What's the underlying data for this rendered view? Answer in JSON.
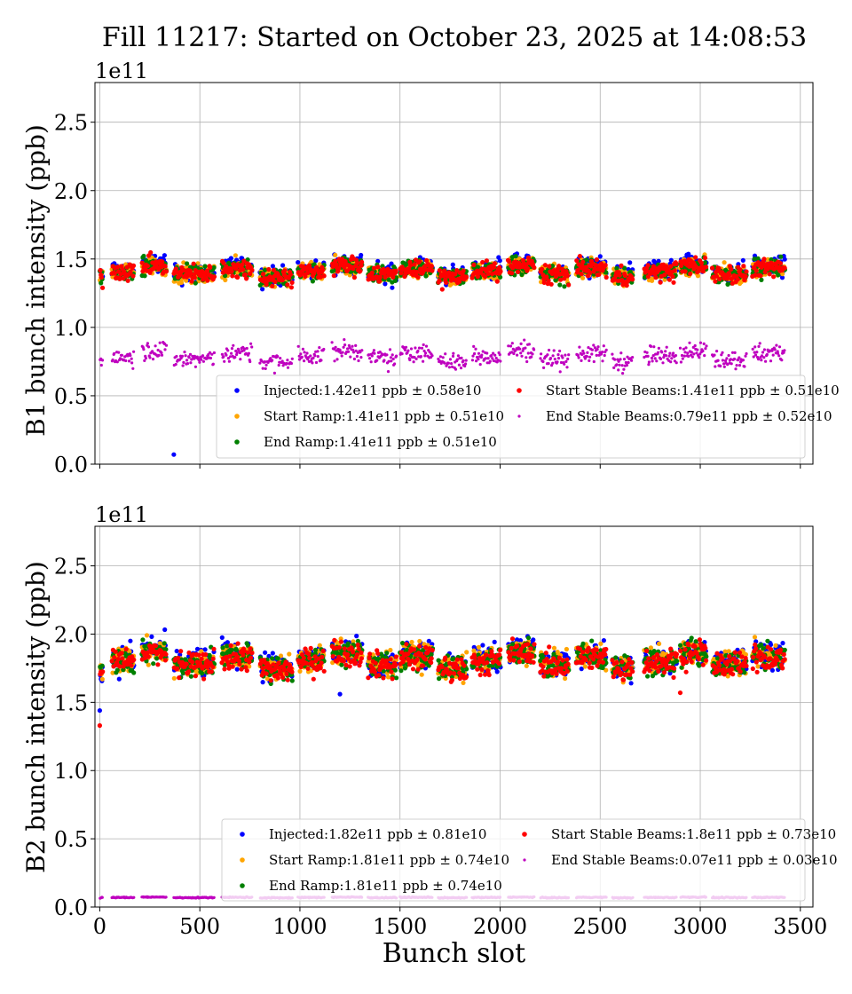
{
  "title": "Fill 11217: Started on October 23, 2025 at 14:08:53",
  "chart_data": [
    {
      "type": "scatter",
      "ylabel": "B1 bunch intensity (ppb)",
      "xlabel": "",
      "y_scale_label": "1e11",
      "xlim": [
        -24,
        3563
      ],
      "ylim": [
        0,
        2.79
      ],
      "xticks": [
        "0",
        "500",
        "1000",
        "1500",
        "2000",
        "2500",
        "3000",
        "3500"
      ],
      "xticks_labeled": false,
      "yticks": [
        "0.0",
        "0.5",
        "1.0",
        "1.5",
        "2.0",
        "2.5"
      ],
      "grid": true,
      "legend_placement": "lower-right",
      "trains": [
        [
          0,
          12
        ],
        [
          60,
          170
        ],
        [
          210,
          330
        ],
        [
          370,
          570
        ],
        [
          610,
          760
        ],
        [
          800,
          960
        ],
        [
          990,
          1120
        ],
        [
          1160,
          1310
        ],
        [
          1340,
          1480
        ],
        [
          1500,
          1660
        ],
        [
          1690,
          1830
        ],
        [
          1860,
          2000
        ],
        [
          2040,
          2170
        ],
        [
          2200,
          2340
        ],
        [
          2380,
          2530
        ],
        [
          2560,
          2660
        ],
        [
          2720,
          2880
        ],
        [
          2900,
          3030
        ],
        [
          3060,
          3230
        ],
        [
          3260,
          3420
        ]
      ],
      "series": [
        {
          "name": "Injected:1.42e11 ppb ± 0.58e10",
          "color": "#0000ff",
          "mean": 1.42,
          "spread": 0.058,
          "outliers": [
            [
              370,
              0.07
            ]
          ]
        },
        {
          "name": "Start Ramp:1.41e11 ppb ± 0.51e10",
          "color": "#ffa500",
          "mean": 1.41,
          "spread": 0.051
        },
        {
          "name": "End Ramp:1.41e11 ppb ± 0.51e10",
          "color": "#008000",
          "mean": 1.41,
          "spread": 0.051
        },
        {
          "name": "Start Stable Beams:1.41e11 ppb ± 0.51e10",
          "color": "#ff0000",
          "mean": 1.41,
          "spread": 0.051
        },
        {
          "name": "End Stable Beams:0.79e11 ppb ± 0.52e10",
          "color": "#bf00bf",
          "mean": 0.79,
          "spread": 0.052
        }
      ]
    },
    {
      "type": "scatter",
      "ylabel": "B2 bunch intensity (ppb)",
      "xlabel": "Bunch slot",
      "y_scale_label": "1e11",
      "xlim": [
        -24,
        3563
      ],
      "ylim": [
        0,
        2.79
      ],
      "xticks": [
        "0",
        "500",
        "1000",
        "1500",
        "2000",
        "2500",
        "3000",
        "3500"
      ],
      "xticks_labeled": true,
      "yticks": [
        "0.0",
        "0.5",
        "1.0",
        "1.5",
        "2.0",
        "2.5"
      ],
      "grid": true,
      "legend_placement": "lower-right",
      "trains": [
        [
          0,
          12
        ],
        [
          60,
          170
        ],
        [
          210,
          330
        ],
        [
          370,
          570
        ],
        [
          610,
          760
        ],
        [
          800,
          960
        ],
        [
          990,
          1120
        ],
        [
          1160,
          1310
        ],
        [
          1340,
          1480
        ],
        [
          1500,
          1660
        ],
        [
          1690,
          1830
        ],
        [
          1860,
          2000
        ],
        [
          2040,
          2170
        ],
        [
          2200,
          2340
        ],
        [
          2380,
          2530
        ],
        [
          2560,
          2660
        ],
        [
          2720,
          2880
        ],
        [
          2900,
          3030
        ],
        [
          3060,
          3230
        ],
        [
          3260,
          3420
        ]
      ],
      "series": [
        {
          "name": "Injected:1.82e11 ppb ± 0.81e10",
          "color": "#0000ff",
          "mean": 1.82,
          "spread": 0.081,
          "outliers": [
            [
              0,
              1.44
            ],
            [
              1200,
              1.56
            ]
          ]
        },
        {
          "name": "Start Ramp:1.81e11 ppb ± 0.74e10",
          "color": "#ffa500",
          "mean": 1.81,
          "spread": 0.074
        },
        {
          "name": "End Ramp:1.81e11 ppb ± 0.74e10",
          "color": "#008000",
          "mean": 1.81,
          "spread": 0.074
        },
        {
          "name": "Start Stable Beams:1.8e11 ppb ± 0.73e10",
          "color": "#ff0000",
          "mean": 1.8,
          "spread": 0.073,
          "outliers": [
            [
              0,
              1.33
            ],
            [
              2900,
              1.57
            ]
          ]
        },
        {
          "name": "End Stable Beams:0.07e11 ppb ± 0.03e10",
          "color": "#bf00bf",
          "mean": 0.07,
          "spread": 0.003
        }
      ]
    }
  ]
}
